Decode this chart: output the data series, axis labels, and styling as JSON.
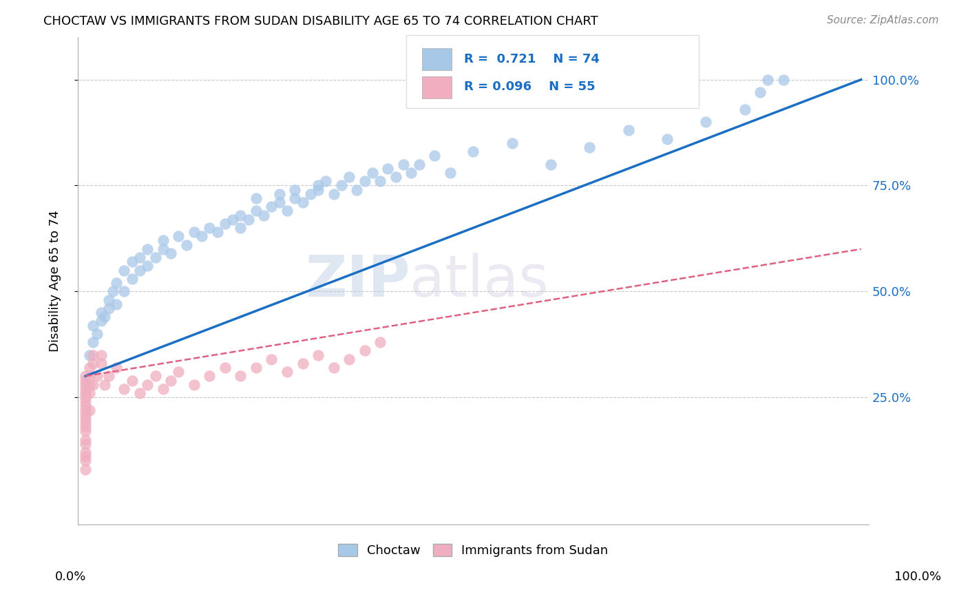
{
  "title": "CHOCTAW VS IMMIGRANTS FROM SUDAN DISABILITY AGE 65 TO 74 CORRELATION CHART",
  "source": "Source: ZipAtlas.com",
  "ylabel": "Disability Age 65 to 74",
  "legend_labels": [
    "Choctaw",
    "Immigrants from Sudan"
  ],
  "choctaw_R": 0.721,
  "choctaw_N": 74,
  "sudan_R": 0.096,
  "sudan_N": 55,
  "ytick_values": [
    0.25,
    0.5,
    0.75,
    1.0
  ],
  "choctaw_color": "#a8c8e8",
  "choctaw_line_color": "#1a6fc4",
  "sudan_color": "#f0aec0",
  "sudan_line_color": "#e06080",
  "watermark_zip": "ZIP",
  "watermark_atlas": "atlas",
  "choctaw_x": [
    0.005,
    0.01,
    0.01,
    0.015,
    0.02,
    0.02,
    0.025,
    0.03,
    0.03,
    0.035,
    0.04,
    0.04,
    0.05,
    0.05,
    0.06,
    0.06,
    0.07,
    0.07,
    0.08,
    0.08,
    0.09,
    0.1,
    0.1,
    0.11,
    0.12,
    0.13,
    0.14,
    0.15,
    0.16,
    0.17,
    0.18,
    0.19,
    0.2,
    0.2,
    0.21,
    0.22,
    0.22,
    0.23,
    0.24,
    0.25,
    0.25,
    0.26,
    0.27,
    0.27,
    0.28,
    0.29,
    0.3,
    0.3,
    0.31,
    0.32,
    0.33,
    0.34,
    0.35,
    0.36,
    0.37,
    0.38,
    0.39,
    0.4,
    0.41,
    0.42,
    0.43,
    0.45,
    0.47,
    0.5,
    0.55,
    0.6,
    0.65,
    0.7,
    0.75,
    0.8,
    0.85,
    0.87,
    0.88,
    0.9
  ],
  "choctaw_y": [
    0.35,
    0.38,
    0.42,
    0.4,
    0.45,
    0.43,
    0.44,
    0.46,
    0.48,
    0.5,
    0.47,
    0.52,
    0.5,
    0.55,
    0.53,
    0.57,
    0.55,
    0.58,
    0.56,
    0.6,
    0.58,
    0.6,
    0.62,
    0.59,
    0.63,
    0.61,
    0.64,
    0.63,
    0.65,
    0.64,
    0.66,
    0.67,
    0.65,
    0.68,
    0.67,
    0.69,
    0.72,
    0.68,
    0.7,
    0.71,
    0.73,
    0.69,
    0.72,
    0.74,
    0.71,
    0.73,
    0.75,
    0.74,
    0.76,
    0.73,
    0.75,
    0.77,
    0.74,
    0.76,
    0.78,
    0.76,
    0.79,
    0.77,
    0.8,
    0.78,
    0.8,
    0.82,
    0.78,
    0.83,
    0.85,
    0.8,
    0.84,
    0.88,
    0.86,
    0.9,
    0.93,
    0.97,
    1.0,
    1.0
  ],
  "sudan_x": [
    0.0,
    0.0,
    0.0,
    0.0,
    0.0,
    0.0,
    0.0,
    0.0,
    0.0,
    0.0,
    0.0,
    0.0,
    0.0,
    0.0,
    0.0,
    0.0,
    0.0,
    0.0,
    0.0,
    0.0,
    0.005,
    0.005,
    0.005,
    0.005,
    0.005,
    0.01,
    0.01,
    0.01,
    0.015,
    0.02,
    0.02,
    0.025,
    0.03,
    0.04,
    0.05,
    0.06,
    0.07,
    0.08,
    0.09,
    0.1,
    0.11,
    0.12,
    0.14,
    0.16,
    0.18,
    0.2,
    0.22,
    0.24,
    0.26,
    0.28,
    0.3,
    0.32,
    0.34,
    0.36,
    0.38
  ],
  "sudan_y": [
    0.3,
    0.29,
    0.28,
    0.27,
    0.26,
    0.25,
    0.24,
    0.23,
    0.22,
    0.21,
    0.2,
    0.19,
    0.18,
    0.17,
    0.15,
    0.14,
    0.12,
    0.11,
    0.1,
    0.08,
    0.32,
    0.3,
    0.28,
    0.26,
    0.22,
    0.35,
    0.33,
    0.28,
    0.3,
    0.33,
    0.35,
    0.28,
    0.3,
    0.32,
    0.27,
    0.29,
    0.26,
    0.28,
    0.3,
    0.27,
    0.29,
    0.31,
    0.28,
    0.3,
    0.32,
    0.3,
    0.32,
    0.34,
    0.31,
    0.33,
    0.35,
    0.32,
    0.34,
    0.36,
    0.38
  ]
}
